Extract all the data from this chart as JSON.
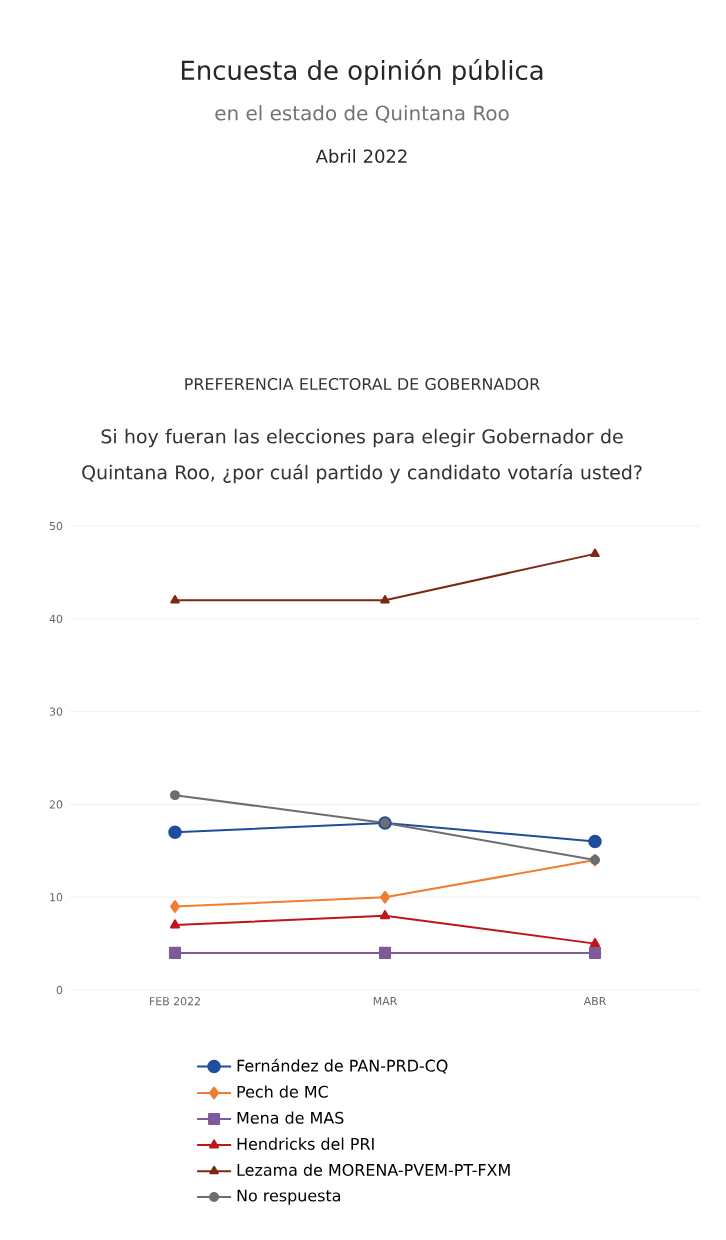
{
  "chart_data": {
    "type": "line",
    "title": "Encuesta de opinión pública",
    "subtitle": "en el estado de Quintana Roo",
    "annotations": [
      "Abril 2022",
      "PREFERENCIA ELECTORAL DE GOBERNADOR",
      "Si hoy fueran las elecciones para elegir Gobernador de Quintana Roo, ¿por cuál partido y candidato votaría usted?"
    ],
    "categories": [
      "FEB 2022",
      "MAR",
      "ABR"
    ],
    "series": [
      {
        "name": "Fernández de PAN-PRD-CQ",
        "color": "#1f4e9c",
        "marker": "circle",
        "values": [
          17,
          18,
          16
        ]
      },
      {
        "name": "Pech de MC",
        "color": "#ef7d32",
        "marker": "diamond",
        "values": [
          9,
          10,
          14
        ]
      },
      {
        "name": "Mena de MAS",
        "color": "#7f5a9b",
        "marker": "square",
        "values": [
          4,
          4,
          4
        ]
      },
      {
        "name": "Hendricks del PRI",
        "color": "#c0141b",
        "marker": "triangle",
        "values": [
          7,
          8,
          5
        ]
      },
      {
        "name": "Lezama de MORENA-PVEM-PT-FXM",
        "color": "#7a2a14",
        "marker": "triangle",
        "values": [
          42,
          42,
          47
        ]
      },
      {
        "name": "No respuesta",
        "color": "#6d6d6d",
        "marker": "circle",
        "values": [
          21,
          18,
          14
        ]
      }
    ],
    "ylim": [
      0,
      50
    ],
    "yticks": [
      0,
      10,
      20,
      30,
      40,
      50
    ],
    "grid": "y",
    "legend": "bottom"
  }
}
